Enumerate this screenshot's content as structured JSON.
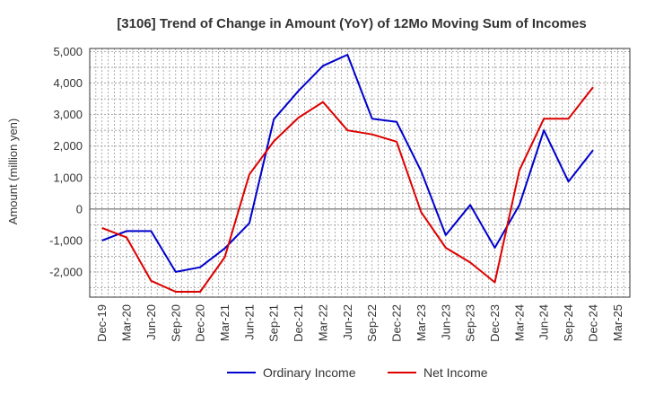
{
  "chart_data": {
    "type": "line",
    "title": "[3106]  Trend of Change in Amount (YoY) of 12Mo Moving Sum of Incomes",
    "xlabel": "",
    "ylabel": "Amount (million yen)",
    "ylim": [
      -2800,
      5100
    ],
    "yticks": [
      5000,
      4000,
      3000,
      2000,
      1000,
      0,
      -1000,
      -2000
    ],
    "ytick_labels": [
      "5,000",
      "4,000",
      "3,000",
      "2,000",
      "1,000",
      "0",
      "-1,000",
      "-2,000"
    ],
    "x": [
      "Dec-19",
      "Mar-20",
      "Jun-20",
      "Sep-20",
      "Dec-20",
      "Mar-21",
      "Jun-21",
      "Sep-21",
      "Dec-21",
      "Mar-22",
      "Jun-22",
      "Sep-22",
      "Dec-22",
      "Mar-23",
      "Jun-23",
      "Sep-23",
      "Dec-23",
      "Mar-24",
      "Jun-24",
      "Sep-24",
      "Dec-24",
      "Mar-25"
    ],
    "grid": true,
    "legend_position": "bottom",
    "series": [
      {
        "name": "Ordinary Income",
        "color": "#0000cc",
        "values": [
          -1000,
          -700,
          -700,
          -2000,
          -1850,
          -1250,
          -450,
          2850,
          3750,
          4550,
          4900,
          2870,
          2770,
          1200,
          -830,
          130,
          -1230,
          130,
          2500,
          870,
          1870,
          null
        ]
      },
      {
        "name": "Net Income",
        "color": "#dd0000",
        "values": [
          -600,
          -900,
          -2280,
          -2630,
          -2630,
          -1530,
          1100,
          2150,
          2900,
          3400,
          2500,
          2370,
          2140,
          -100,
          -1230,
          -1700,
          -2330,
          1230,
          2870,
          2870,
          3870,
          null
        ]
      }
    ]
  }
}
